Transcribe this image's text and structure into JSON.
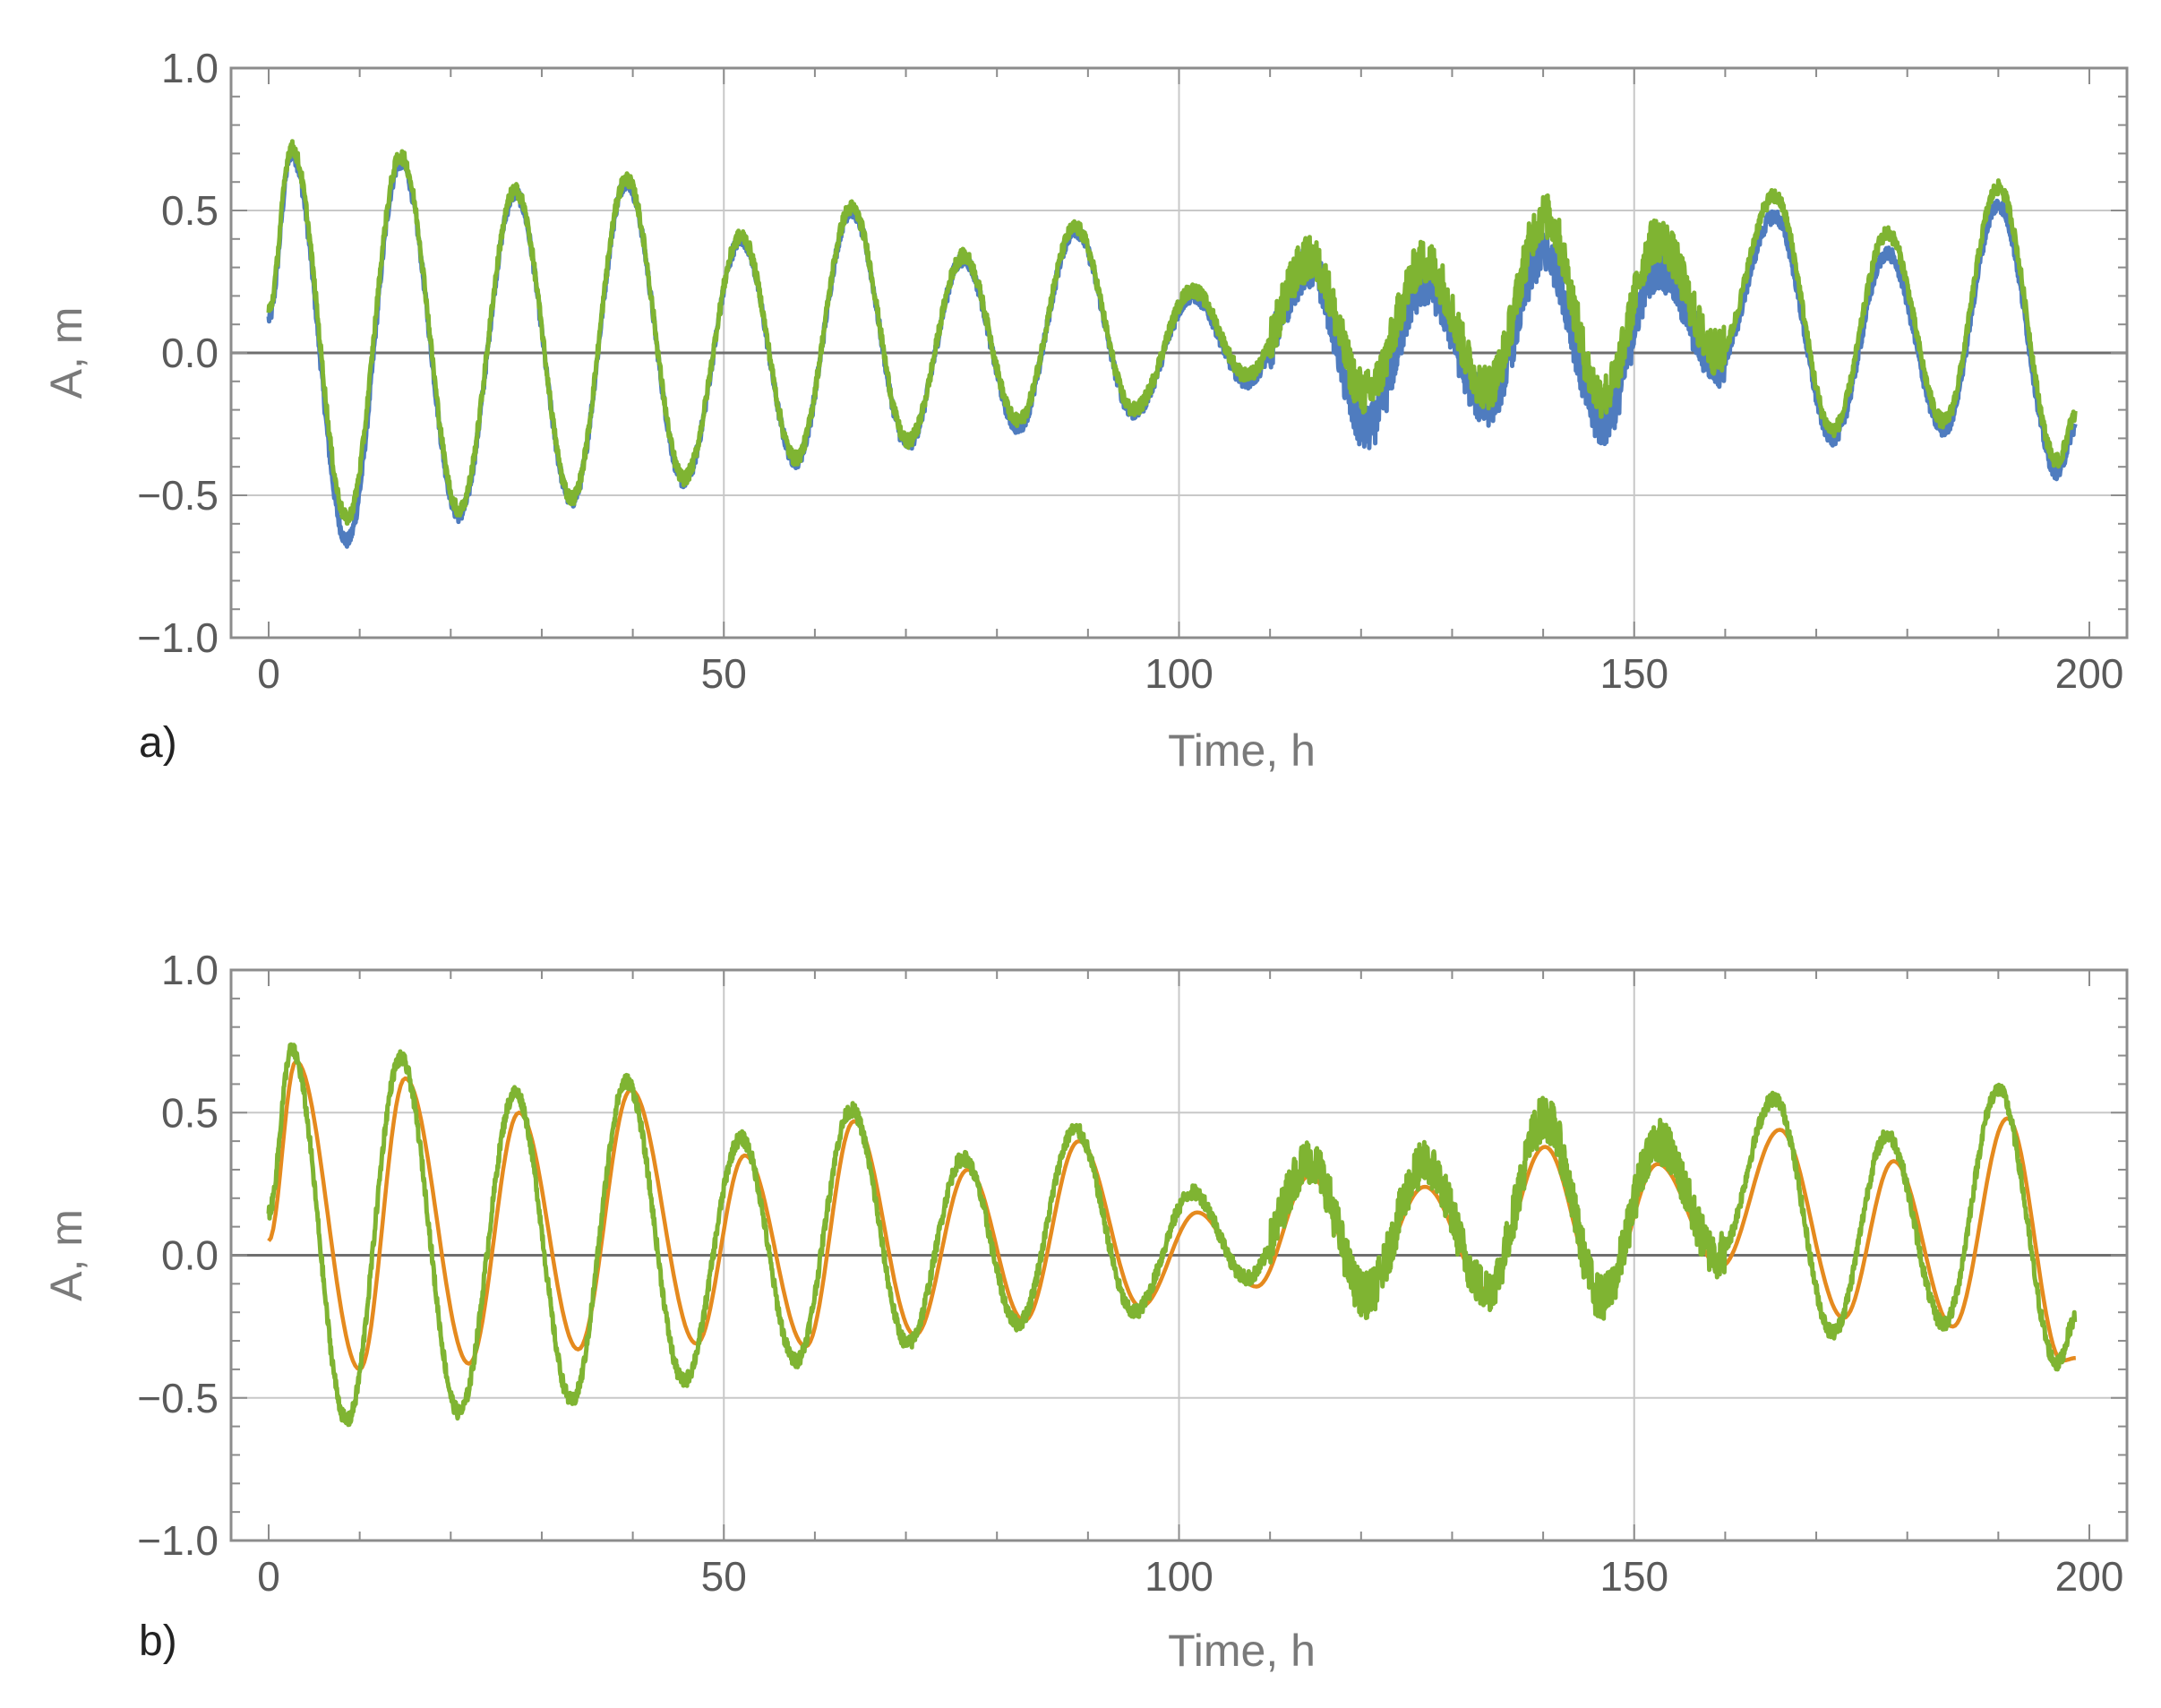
{
  "colors": {
    "frame": "#8c8c8c",
    "grid": "#c8c8c8",
    "zero_line": "#6e6e6e",
    "blue_series": "#4f7cbf",
    "green_series": "#7fb432",
    "orange_series": "#e58a1e"
  },
  "chart_data": [
    {
      "type": "line",
      "panel_label": "a)",
      "title": "",
      "xlabel": "Time, h",
      "ylabel": "A, m",
      "xlim": [
        0,
        200
      ],
      "ylim": [
        -1.0,
        1.0
      ],
      "x_ticks": [
        "0",
        "50",
        "100",
        "150",
        "200"
      ],
      "y_ticks": [
        "−1.0",
        "−0.5",
        "0.0",
        "0.5",
        "1.0"
      ],
      "grid": true,
      "legend": "none",
      "series": [
        {
          "color": "blue_series",
          "noise": 0.025,
          "points": [
            [
              0,
              0.12
            ],
            [
              2.5,
              0.7
            ],
            [
              8.6,
              -0.66
            ],
            [
              14.5,
              0.67
            ],
            [
              20.9,
              -0.57
            ],
            [
              27.1,
              0.56
            ],
            [
              33.3,
              -0.52
            ],
            [
              39.3,
              0.6
            ],
            [
              45.6,
              -0.45
            ],
            [
              51.9,
              0.4
            ],
            [
              57.9,
              -0.38
            ],
            [
              64.0,
              0.5
            ],
            [
              70.2,
              -0.32
            ],
            [
              76.3,
              0.33
            ],
            [
              82.3,
              -0.26
            ],
            [
              88.6,
              0.43
            ],
            [
              95.0,
              -0.21
            ],
            [
              101.5,
              0.2
            ],
            [
              107.5,
              -0.1
            ],
            [
              114.4,
              0.3
            ],
            [
              120.5,
              -0.27
            ],
            [
              127.0,
              0.24
            ],
            [
              133.8,
              -0.18
            ],
            [
              140.2,
              0.35
            ],
            [
              146.5,
              -0.25
            ],
            [
              152.6,
              0.3
            ],
            [
              159.2,
              -0.04
            ],
            [
              165.4,
              0.48
            ],
            [
              171.8,
              -0.3
            ],
            [
              177.8,
              0.35
            ],
            [
              184.0,
              -0.27
            ],
            [
              190.0,
              0.52
            ],
            [
              196.5,
              -0.42
            ],
            [
              198.5,
              -0.26
            ]
          ]
        },
        {
          "color": "green_series",
          "noise": 0.025,
          "points": [
            [
              0,
              0.15
            ],
            [
              2.5,
              0.72
            ],
            [
              8.6,
              -0.58
            ],
            [
              14.5,
              0.69
            ],
            [
              20.9,
              -0.55
            ],
            [
              27.1,
              0.57
            ],
            [
              33.3,
              -0.51
            ],
            [
              39.3,
              0.61
            ],
            [
              45.6,
              -0.44
            ],
            [
              51.9,
              0.41
            ],
            [
              57.9,
              -0.37
            ],
            [
              64.0,
              0.51
            ],
            [
              70.2,
              -0.31
            ],
            [
              76.3,
              0.34
            ],
            [
              82.3,
              -0.24
            ],
            [
              88.6,
              0.44
            ],
            [
              95.0,
              -0.2
            ],
            [
              101.5,
              0.22
            ],
            [
              107.5,
              -0.08
            ],
            [
              114.4,
              0.33
            ],
            [
              120.5,
              -0.14
            ],
            [
              127.0,
              0.32
            ],
            [
              133.8,
              -0.12
            ],
            [
              140.2,
              0.48
            ],
            [
              146.5,
              -0.15
            ],
            [
              152.6,
              0.4
            ],
            [
              159.2,
              0.0
            ],
            [
              165.4,
              0.55
            ],
            [
              171.8,
              -0.27
            ],
            [
              177.8,
              0.42
            ],
            [
              184.0,
              -0.24
            ],
            [
              190.0,
              0.58
            ],
            [
              196.5,
              -0.38
            ],
            [
              198.5,
              -0.22
            ]
          ]
        }
      ]
    },
    {
      "type": "line",
      "panel_label": "b)",
      "title": "",
      "xlabel": "Time, h",
      "ylabel": "A, m",
      "xlim": [
        0,
        200
      ],
      "ylim": [
        -1.0,
        1.0
      ],
      "x_ticks": [
        "0",
        "50",
        "100",
        "150",
        "200"
      ],
      "y_ticks": [
        "−1.0",
        "−0.5",
        "0.0",
        "0.5",
        "1.0"
      ],
      "grid": true,
      "legend": "none",
      "series": [
        {
          "color": "orange_series",
          "noise": 0,
          "points": [
            [
              0,
              0.05
            ],
            [
              3.0,
              0.68
            ],
            [
              10.0,
              -0.4
            ],
            [
              15.0,
              0.62
            ],
            [
              22.0,
              -0.38
            ],
            [
              27.5,
              0.5
            ],
            [
              34.0,
              -0.33
            ],
            [
              39.8,
              0.58
            ],
            [
              47.0,
              -0.31
            ],
            [
              52.3,
              0.35
            ],
            [
              59.0,
              -0.32
            ],
            [
              64.3,
              0.47
            ],
            [
              71.0,
              -0.28
            ],
            [
              76.8,
              0.3
            ],
            [
              83.0,
              -0.23
            ],
            [
              89.0,
              0.4
            ],
            [
              95.8,
              -0.18
            ],
            [
              102.0,
              0.15
            ],
            [
              108.5,
              -0.11
            ],
            [
              114.4,
              0.28
            ],
            [
              120.5,
              -0.12
            ],
            [
              127.0,
              0.24
            ],
            [
              133.8,
              -0.12
            ],
            [
              140.2,
              0.38
            ],
            [
              146.5,
              -0.15
            ],
            [
              152.6,
              0.32
            ],
            [
              159.5,
              -0.04
            ],
            [
              166.0,
              0.44
            ],
            [
              173.0,
              -0.22
            ],
            [
              178.5,
              0.33
            ],
            [
              185.0,
              -0.25
            ],
            [
              191.0,
              0.48
            ],
            [
              197.0,
              -0.37
            ],
            [
              198.5,
              -0.36
            ]
          ]
        },
        {
          "color": "green_series",
          "noise": 0.025,
          "points": [
            [
              0,
              0.15
            ],
            [
              2.5,
              0.72
            ],
            [
              8.6,
              -0.58
            ],
            [
              14.5,
              0.69
            ],
            [
              20.9,
              -0.55
            ],
            [
              27.1,
              0.57
            ],
            [
              33.3,
              -0.51
            ],
            [
              39.3,
              0.61
            ],
            [
              45.6,
              -0.44
            ],
            [
              51.9,
              0.41
            ],
            [
              57.9,
              -0.37
            ],
            [
              64.0,
              0.51
            ],
            [
              70.2,
              -0.31
            ],
            [
              76.3,
              0.34
            ],
            [
              82.3,
              -0.24
            ],
            [
              88.6,
              0.44
            ],
            [
              95.0,
              -0.2
            ],
            [
              101.5,
              0.22
            ],
            [
              107.5,
              -0.08
            ],
            [
              114.4,
              0.33
            ],
            [
              120.5,
              -0.14
            ],
            [
              127.0,
              0.32
            ],
            [
              133.8,
              -0.12
            ],
            [
              140.2,
              0.48
            ],
            [
              146.5,
              -0.15
            ],
            [
              152.6,
              0.4
            ],
            [
              159.2,
              0.0
            ],
            [
              165.4,
              0.55
            ],
            [
              171.8,
              -0.27
            ],
            [
              177.8,
              0.42
            ],
            [
              184.0,
              -0.24
            ],
            [
              190.0,
              0.58
            ],
            [
              196.5,
              -0.38
            ],
            [
              198.5,
              -0.22
            ]
          ]
        }
      ]
    }
  ]
}
